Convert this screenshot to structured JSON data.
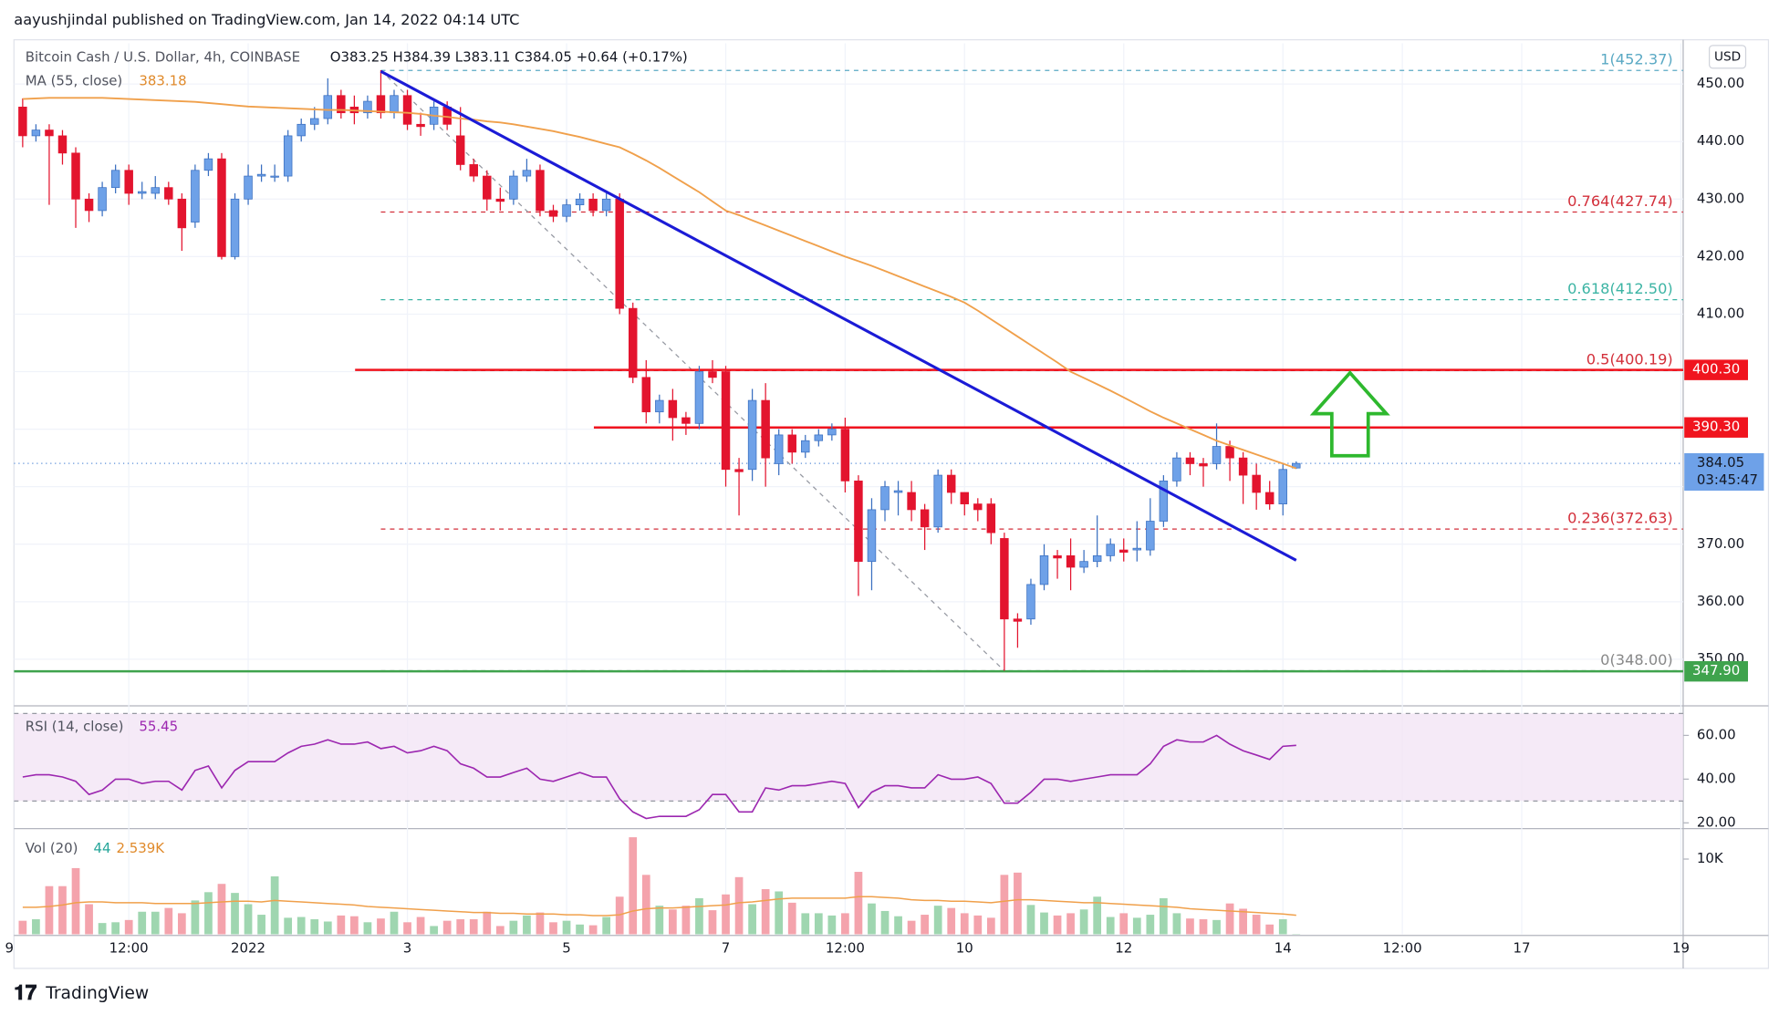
{
  "header": {
    "publisher": "aayushjindal published on TradingView.com, Jan 14, 2022 04:14 UTC",
    "brand": "TradingView"
  },
  "chart_data": {
    "type": "candlestick",
    "symbol": "Bitcoin Cash / U.S. Dollar, 4h, COINBASE",
    "ohlc_text": "O383.25  H384.39  L383.11  C384.05  +0.64 (+0.17%)",
    "currency": "USD",
    "countdown": "03:45:47",
    "up_color": "#6ea1e8",
    "down_color": "#e3142e",
    "xlim": [
      -1,
      125
    ],
    "xticks": [
      {
        "value": -1,
        "label": "9"
      },
      {
        "value": 8,
        "label": "12:00"
      },
      {
        "value": 17,
        "label": "2022"
      },
      {
        "value": 29,
        "label": "3"
      },
      {
        "value": 41,
        "label": "5"
      },
      {
        "value": 53,
        "label": "7"
      },
      {
        "value": 62,
        "label": "12:00"
      },
      {
        "value": 71,
        "label": "10"
      },
      {
        "value": 83,
        "label": "12"
      },
      {
        "value": 95,
        "label": "14"
      },
      {
        "value": 104,
        "label": "12:00"
      },
      {
        "value": 113,
        "label": "17"
      },
      {
        "value": 125,
        "label": "19"
      }
    ],
    "ylim": [
      342.1,
      457.1
    ],
    "yticks": [
      {
        "value": 350,
        "label": "350.00"
      },
      {
        "value": 360,
        "label": "360.00"
      },
      {
        "value": 370,
        "label": "370.00"
      },
      {
        "value": 380,
        "label": "380.00"
      },
      {
        "value": 390,
        "label": "390.00"
      },
      {
        "value": 400,
        "label": "400.00"
      },
      {
        "value": 410,
        "label": "410.00"
      },
      {
        "value": 420,
        "label": "420.00"
      },
      {
        "value": 430,
        "label": "430.00"
      },
      {
        "value": 440,
        "label": "440.00"
      },
      {
        "value": 450,
        "label": "450.00"
      }
    ],
    "grid": true,
    "open": [
      446,
      441,
      442,
      441,
      438,
      430,
      428,
      432,
      435,
      431,
      431,
      432,
      430,
      426,
      435,
      437,
      420,
      430,
      434,
      434,
      434,
      441,
      443,
      444,
      448,
      446,
      445,
      448,
      445,
      448,
      443,
      443,
      446,
      441,
      436,
      434,
      430,
      430,
      434,
      435,
      428,
      427,
      429,
      430,
      428,
      430,
      411,
      399,
      393,
      395,
      392,
      391,
      400,
      400,
      383,
      383,
      395,
      384,
      389,
      386,
      388,
      389,
      390,
      381,
      367,
      376,
      379,
      379,
      376,
      373,
      382,
      379,
      377,
      377,
      371,
      357,
      357,
      363,
      368,
      368,
      366,
      367,
      368,
      369,
      369,
      369,
      374,
      381,
      385,
      384,
      384,
      387,
      385,
      382,
      379,
      377,
      383.25
    ],
    "high": [
      447.5,
      443,
      443,
      442,
      439,
      431,
      433,
      436,
      436,
      433,
      434,
      433,
      431,
      436,
      438,
      438,
      431,
      436,
      436,
      436,
      442,
      444,
      446,
      451,
      449,
      448,
      448,
      452.4,
      449,
      449,
      445,
      447,
      447,
      446,
      437,
      435,
      432,
      435,
      437,
      436,
      429,
      430,
      431,
      431,
      431,
      431,
      412,
      402,
      396,
      397,
      393,
      401,
      402,
      401,
      385,
      397,
      398,
      390,
      390,
      389,
      390,
      391,
      392,
      382,
      378,
      381,
      381,
      381,
      377,
      383,
      383,
      379,
      378,
      378,
      372,
      358,
      364,
      370,
      369,
      371,
      369,
      375,
      371,
      371,
      374,
      378,
      382,
      386,
      386,
      385,
      391,
      388,
      386,
      384,
      381,
      384,
      384.39
    ],
    "low": [
      439,
      440,
      429,
      436,
      425,
      426,
      427,
      431,
      429,
      430,
      430,
      429,
      421,
      425,
      434,
      419.5,
      419.5,
      429,
      433,
      433,
      433,
      440,
      442,
      443,
      444,
      443,
      444,
      444,
      444,
      442,
      441,
      442,
      442,
      435,
      433,
      428,
      428,
      429,
      433,
      427,
      426,
      426,
      428,
      427,
      427,
      410,
      398,
      391,
      391,
      388,
      389,
      390,
      398,
      380,
      375,
      381,
      380,
      382,
      384,
      385,
      387,
      388,
      379,
      361,
      362,
      374,
      375,
      374,
      369,
      372,
      377,
      375,
      374,
      370,
      348,
      352,
      356,
      362,
      364,
      362,
      365,
      366,
      367,
      367,
      367,
      368,
      373,
      380,
      382,
      380,
      383,
      381,
      377,
      376,
      376,
      375,
      383.11
    ],
    "close": [
      441,
      442,
      441,
      438,
      430,
      428,
      432,
      435,
      431,
      431.3,
      432,
      430,
      425,
      435,
      437,
      420,
      430,
      434,
      434.3,
      434,
      441,
      443,
      444,
      448,
      445,
      445,
      447,
      445,
      448,
      443,
      442.6,
      446,
      443,
      436,
      434,
      430,
      429.6,
      434,
      435,
      428,
      427,
      429,
      430,
      428,
      430,
      411,
      399,
      393,
      395,
      392,
      391,
      400,
      399,
      383,
      382.6,
      395,
      385,
      389,
      386,
      388,
      389,
      390,
      381,
      367,
      376,
      380,
      379.3,
      376,
      373,
      382,
      379,
      377,
      376,
      372,
      357,
      356.6,
      363,
      368,
      367.6,
      366,
      367,
      368,
      370,
      368.6,
      369.3,
      374,
      381,
      385,
      384,
      383.6,
      387,
      385,
      382,
      379,
      377,
      383,
      384.05
    ],
    "ma": {
      "name": "MA (55, close)",
      "color": "#f0a04b",
      "values": [
        447.4,
        447.5,
        447.6,
        447.6,
        447.6,
        447.6,
        447.6,
        447.5,
        447.4,
        447.3,
        447.2,
        447.1,
        447,
        446.9,
        446.7,
        446.5,
        446.3,
        446.1,
        446,
        445.9,
        445.8,
        445.7,
        445.6,
        445.5,
        445.5,
        445.4,
        445.3,
        445.2,
        445.1,
        445,
        444.8,
        444.5,
        444.3,
        444,
        443.8,
        443.5,
        443.3,
        443,
        442.6,
        442.2,
        441.8,
        441.3,
        440.8,
        440.2,
        439.6,
        439,
        437.9,
        436.7,
        435.4,
        434,
        432.6,
        431.2,
        429.6,
        428,
        427.2,
        426.3,
        425.4,
        424.5,
        423.6,
        422.7,
        421.8,
        420.9,
        420,
        419.2,
        418.4,
        417.5,
        416.6,
        415.7,
        414.8,
        413.9,
        413,
        412,
        410.6,
        409.1,
        407.6,
        406.1,
        404.6,
        403.1,
        401.6,
        400,
        398.9,
        397.8,
        396.7,
        395.5,
        394.3,
        393.1,
        392,
        391,
        390,
        389,
        388,
        387.2,
        386.4,
        385.6,
        384.8,
        384,
        383.18
      ]
    },
    "fib_levels": [
      {
        "value": 452.37,
        "label": "1(452.37)",
        "color": "#5aa9c4"
      },
      {
        "value": 427.74,
        "label": "0.764(427.74)",
        "color": "#d32f3a"
      },
      {
        "value": 412.5,
        "label": "0.618(412.50)",
        "color": "#3cb4a4"
      },
      {
        "value": 400.19,
        "label": "0.5(400.19)",
        "color": "#d32f3a"
      },
      {
        "value": 372.63,
        "label": "0.236(372.63)",
        "color": "#d32f3a"
      },
      {
        "value": 348.0,
        "label": "0(348.00)",
        "color": "#888888"
      }
    ],
    "levels": [
      {
        "value": 400.3,
        "label": "400.30",
        "color": "#f0141e"
      },
      {
        "value": 390.3,
        "label": "390.30",
        "color": "#f0141e"
      },
      {
        "value": 347.9,
        "label": "347.90",
        "color": "#3fa34d"
      }
    ],
    "trendline": {
      "x": [
        27,
        96
      ],
      "y": [
        452.2,
        367.2
      ],
      "color": "#1b1bd6"
    },
    "rsi": {
      "name": "RSI (14, close)",
      "color": "#9c27b0",
      "ylim": [
        17.9,
        73
      ],
      "band": [
        30,
        70
      ],
      "yticks": [
        {
          "value": 20,
          "label": "20.00"
        },
        {
          "value": 40,
          "label": "40.00"
        },
        {
          "value": 60,
          "label": "60.00"
        }
      ],
      "values": [
        41,
        42,
        42,
        41,
        39,
        33,
        35,
        40,
        40,
        38,
        39,
        39,
        35,
        44,
        46,
        36,
        44,
        48,
        48,
        48,
        52,
        55,
        56,
        58,
        56,
        56,
        57,
        54,
        55,
        52,
        53,
        55,
        53,
        47,
        45,
        41,
        41,
        43,
        45,
        40,
        39,
        41,
        43,
        41,
        41,
        31,
        25,
        22,
        23,
        23,
        23,
        26,
        33,
        33,
        25,
        25,
        36,
        35,
        37,
        37,
        38,
        39,
        38,
        27,
        34,
        37,
        37,
        36,
        36,
        42,
        40,
        40,
        41,
        38,
        29,
        29,
        34,
        40,
        40,
        39,
        40,
        41,
        42,
        42,
        42,
        47,
        55,
        58,
        57,
        57,
        60,
        56,
        53,
        51,
        49,
        55,
        55.45
      ]
    },
    "volume": {
      "name": "Vol (20)",
      "up_color": "#9fd6b0",
      "down_color": "#f4a3ac",
      "ylim": [
        0,
        13900
      ],
      "yticks": [
        {
          "value": 10000,
          "label": "10K"
        }
      ],
      "values": [
        1800,
        2000,
        6400,
        6400,
        8800,
        4000,
        1500,
        1600,
        1900,
        3000,
        3000,
        3500,
        2800,
        4500,
        5600,
        6700,
        5500,
        4000,
        2600,
        7700,
        2200,
        2300,
        2000,
        1700,
        2500,
        2400,
        1600,
        2100,
        3000,
        1600,
        2300,
        1100,
        1800,
        2000,
        2000,
        3000,
        1100,
        1800,
        2500,
        2900,
        1600,
        1800,
        1300,
        1200,
        2300,
        5000,
        12900,
        7900,
        3800,
        3300,
        3800,
        4800,
        3200,
        5300,
        7600,
        4000,
        6000,
        5700,
        4200,
        2800,
        2800,
        2500,
        2800,
        8300,
        4100,
        3100,
        2400,
        1800,
        2600,
        3800,
        3500,
        2800,
        2500,
        2200,
        7900,
        8200,
        3900,
        2900,
        2500,
        2800,
        3300,
        5000,
        2300,
        2800,
        2200,
        2600,
        4800,
        2800,
        2100,
        2000,
        1900,
        4100,
        3400,
        2600,
        1300,
        2000,
        44
      ],
      "ma_color": "#f0a04b",
      "ma_label": "2.539K",
      "ma_values": [
        3600,
        3600,
        3700,
        3900,
        4200,
        4300,
        4300,
        4200,
        4200,
        4200,
        4100,
        4100,
        4100,
        4100,
        4200,
        4300,
        4400,
        4400,
        4300,
        4500,
        4400,
        4300,
        4200,
        4100,
        4000,
        3900,
        3700,
        3600,
        3500,
        3400,
        3300,
        3200,
        3100,
        3000,
        2900,
        2900,
        2800,
        2800,
        2700,
        2700,
        2700,
        2600,
        2600,
        2500,
        2500,
        2600,
        3100,
        3400,
        3500,
        3500,
        3600,
        3700,
        3800,
        3900,
        4200,
        4300,
        4500,
        4700,
        4800,
        4800,
        4800,
        4800,
        4800,
        5000,
        5000,
        4900,
        4800,
        4600,
        4500,
        4500,
        4400,
        4400,
        4300,
        4200,
        4400,
        4600,
        4600,
        4500,
        4400,
        4300,
        4200,
        4200,
        4100,
        4000,
        3900,
        3800,
        3700,
        3600,
        3400,
        3300,
        3200,
        3100,
        3000,
        2900,
        2800,
        2700,
        2539
      ]
    }
  }
}
